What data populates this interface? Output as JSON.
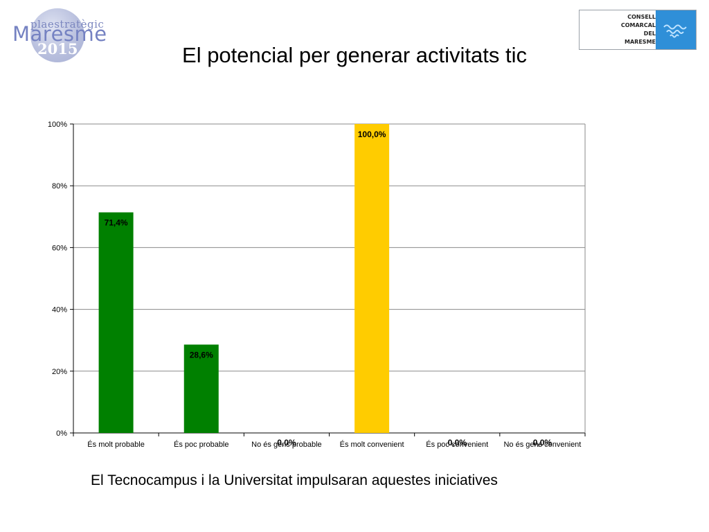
{
  "header": {
    "logo_left": {
      "line1": "plaestratègic",
      "line2": "Maresme",
      "line3": "2015"
    },
    "logo_right": {
      "lines": [
        "CONSELL",
        "COMARCAL",
        "DEL",
        "MARESME"
      ],
      "icon": "waves-emblem-icon"
    },
    "title": "El potencial per generar activitats tic"
  },
  "chart_data": {
    "type": "bar",
    "categories": [
      "És molt probable",
      "És poc probable",
      "No és gens probable",
      "És molt convenient",
      "És poc convenient",
      "No és gens convenient"
    ],
    "values": [
      71.4,
      28.6,
      0.0,
      100.0,
      0.0,
      0.0
    ],
    "value_labels": [
      "71,4%",
      "28,6%",
      "0,0%",
      "100,0%",
      "0,0%",
      "0,0%"
    ],
    "bar_colors": [
      "#008000",
      "#008000",
      "#008000",
      "#ffcc00",
      "#ffcc00",
      "#ffcc00"
    ],
    "ylim": [
      0,
      100
    ],
    "yticks": [
      0,
      20,
      40,
      60,
      80,
      100
    ],
    "ytick_labels": [
      "0%",
      "20%",
      "40%",
      "60%",
      "80%",
      "100%"
    ],
    "grid": true,
    "legend": "none"
  },
  "footer": {
    "caption": "El Tecnocampus i la Universitat impulsaran aquestes iniciatives"
  }
}
